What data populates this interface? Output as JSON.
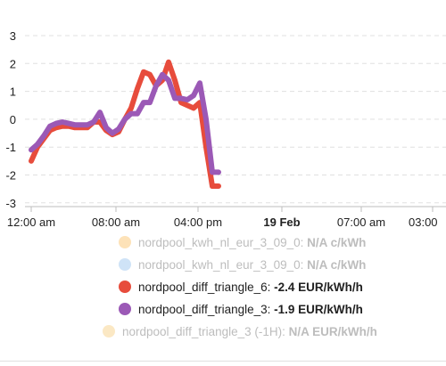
{
  "chart_data": {
    "type": "line",
    "y_ticks": [
      "3",
      "2",
      "1",
      "0",
      "-1",
      "-2",
      "-3"
    ],
    "ylim": [
      -3.3,
      3.3
    ],
    "grid": true,
    "x_ticks": [
      {
        "label": "12:00 am",
        "bold": false
      },
      {
        "label": "08:00 am",
        "bold": false
      },
      {
        "label": "04:00 pm",
        "bold": false
      },
      {
        "label": "19 Feb",
        "bold": true
      },
      {
        "label": "07:00 am",
        "bold": false
      },
      {
        "label": "03:00",
        "bold": false
      }
    ],
    "series": [
      {
        "name": "nordpool_diff_triangle_6",
        "color": "#e74c3c",
        "values": [
          -1.5,
          -1.0,
          -0.7,
          -0.4,
          -0.3,
          -0.25,
          -0.25,
          -0.3,
          -0.3,
          -0.3,
          -0.1,
          -0.1,
          -0.4,
          -0.55,
          -0.45,
          0.0,
          0.4,
          1.1,
          1.7,
          1.6,
          1.2,
          1.4,
          2.05,
          1.4,
          0.6,
          0.5,
          0.4,
          0.6,
          -1.0,
          -2.4,
          -2.4
        ]
      },
      {
        "name": "nordpool_diff_triangle_3",
        "color": "#9b59b6",
        "values": [
          -1.1,
          -0.9,
          -0.6,
          -0.25,
          -0.15,
          -0.1,
          -0.15,
          -0.2,
          -0.2,
          -0.2,
          -0.1,
          0.25,
          -0.3,
          -0.5,
          -0.35,
          0.0,
          0.2,
          0.2,
          0.6,
          0.6,
          1.2,
          1.6,
          1.4,
          0.75,
          0.75,
          0.7,
          0.85,
          1.3,
          0.0,
          -1.9,
          -1.9
        ]
      }
    ]
  },
  "legend": [
    {
      "name": "nordpool_kwh_nl_eur_3_09_0",
      "value": "N/A c/kWh",
      "color": "#fde2b8",
      "hidden": true
    },
    {
      "name": "nordpool_kwh_nl_eur_3_09_0",
      "value": "N/A c/kWh",
      "color": "#cfe3f7",
      "hidden": true
    },
    {
      "name": "nordpool_diff_triangle_6",
      "value": "-2.4 EUR/kWh/h",
      "color": "#e74c3c",
      "hidden": false
    },
    {
      "name": "nordpool_diff_triangle_3",
      "value": "-1.9 EUR/kWh/h",
      "color": "#9b59b6",
      "hidden": false
    },
    {
      "name": "nordpool_diff_triangle_3 (-1H)",
      "value": "N/A EUR/kWh/h",
      "color": "#fbe8c4",
      "hidden": true
    }
  ]
}
